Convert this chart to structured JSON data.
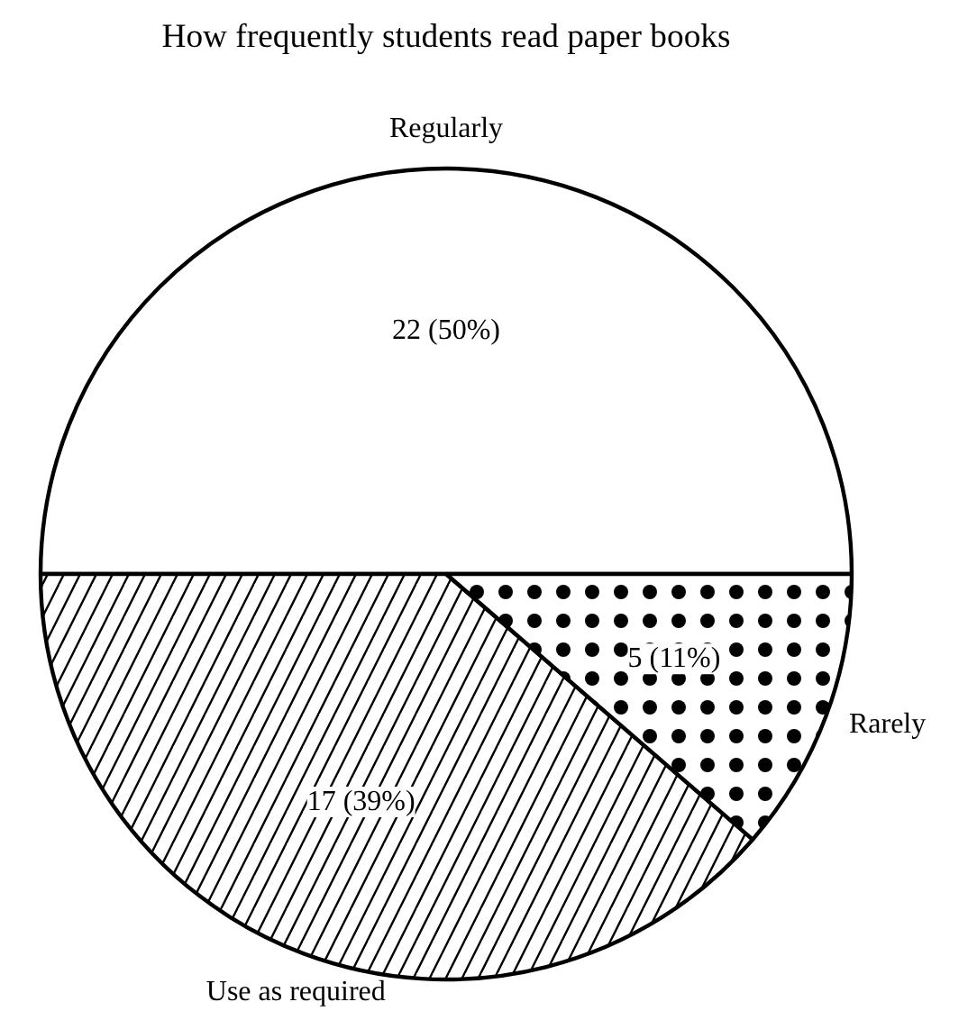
{
  "chart_data": {
    "type": "pie",
    "title": "How frequently students read paper books",
    "categories": [
      "Regularly",
      "Use as required",
      "Rarely"
    ],
    "values": [
      22,
      17,
      5
    ],
    "colors": [
      "#ffffff",
      "#ffffff",
      "#ffffff"
    ],
    "value_labels": [
      "22 (50%)",
      "17 (39%)",
      "5 (11%)"
    ]
  }
}
